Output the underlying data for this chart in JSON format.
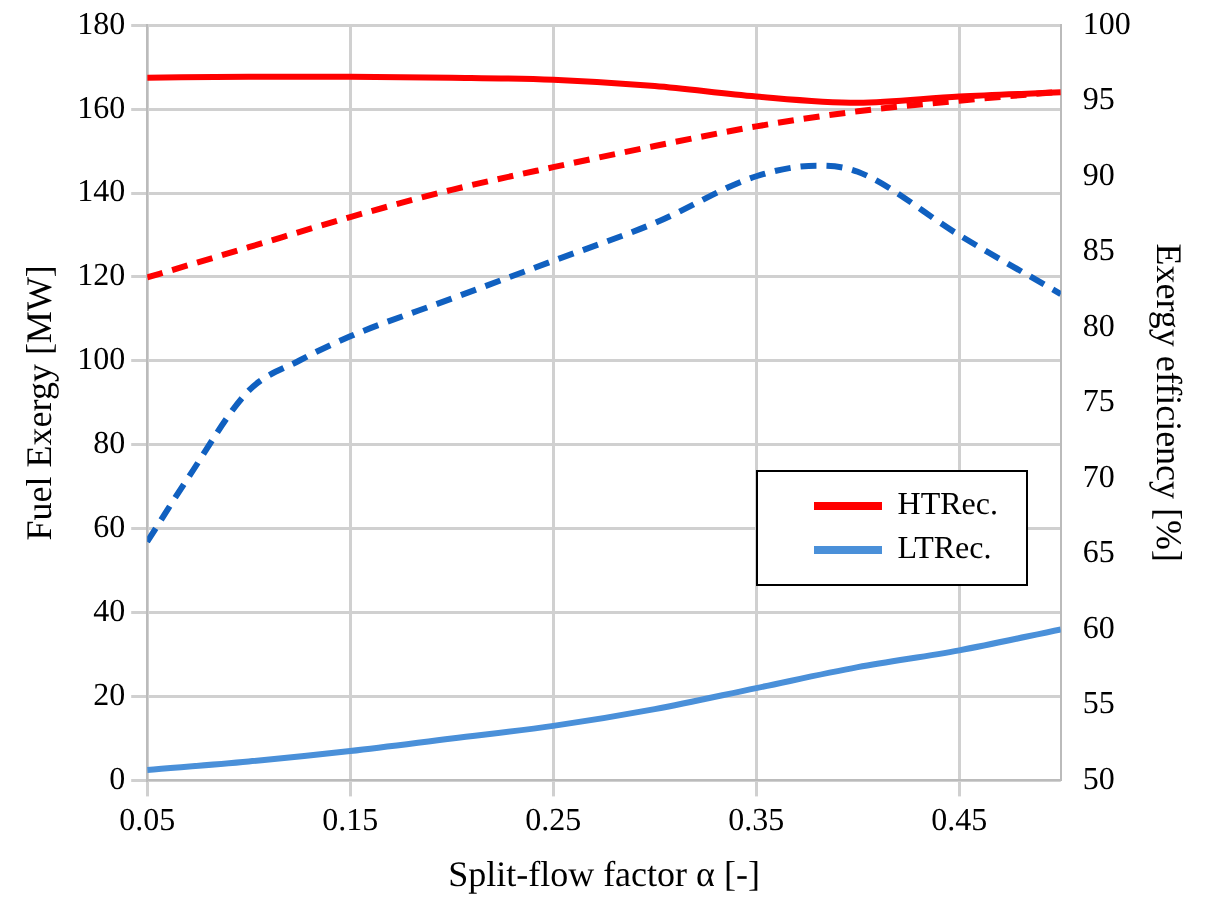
{
  "chart_data": {
    "type": "line",
    "xlabel": "Split-flow factor α [-]",
    "ylabel": "Fuel Exergy [MW]",
    "y2label": "Exergy efficiency [%]",
    "xlim": [
      0.05,
      0.5
    ],
    "xticks": [
      0.05,
      0.15,
      0.25,
      0.35,
      0.45
    ],
    "ylim": [
      0,
      180
    ],
    "yticks": [
      0,
      20,
      40,
      60,
      80,
      100,
      120,
      140,
      160,
      180
    ],
    "y2lim": [
      50,
      100
    ],
    "y2ticks": [
      50,
      55,
      60,
      65,
      70,
      75,
      80,
      85,
      90,
      95,
      100
    ],
    "grid": true,
    "legend": "right",
    "marker": "none",
    "series": [
      {
        "name": "HTRec.",
        "color": "#ff0000",
        "line_style": "solid",
        "x": [
          0.05,
          0.1,
          0.15,
          0.2,
          0.25,
          0.3,
          0.35,
          0.4,
          0.45,
          0.5
        ],
        "values": [
          167.5,
          167.7,
          167.7,
          167.5,
          167,
          165.5,
          163,
          161.5,
          163,
          164
        ]
      },
      {
        "name": "LTRec.",
        "color": "#4a90d9",
        "line_style": "solid",
        "x": [
          0.05,
          0.1,
          0.15,
          0.2,
          0.25,
          0.3,
          0.35,
          0.4,
          0.45,
          0.5
        ],
        "values": [
          2.5,
          4.5,
          7,
          10,
          13,
          17,
          22,
          27,
          31,
          36
        ]
      },
      {
        "color": "#ff0000",
        "line_style": "dashed",
        "axis": "y2",
        "x": [
          0.05,
          0.1,
          0.15,
          0.2,
          0.25,
          0.3,
          0.35,
          0.4,
          0.45,
          0.5
        ],
        "values": [
          83.3,
          85.3,
          87.3,
          89.1,
          90.6,
          92,
          93.3,
          94.3,
          95,
          95.6
        ]
      },
      {
        "color": "#1060c0",
        "line_style": "dashed",
        "axis": "y2",
        "x": [
          0.05,
          0.07,
          0.1,
          0.125,
          0.15,
          0.2,
          0.25,
          0.3,
          0.35,
          0.38,
          0.4,
          0.45,
          0.5
        ],
        "values": [
          65.8,
          70,
          75.8,
          77.8,
          79.4,
          81.9,
          84.4,
          86.9,
          90,
          90.7,
          90.3,
          86.1,
          82.2
        ]
      }
    ]
  }
}
